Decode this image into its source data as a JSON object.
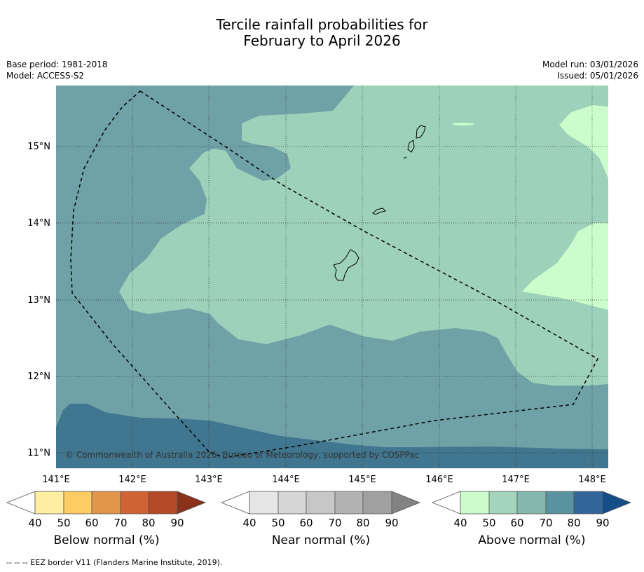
{
  "title": {
    "line1": "Tercile rainfall probabilities for",
    "line2": "February to April 2026"
  },
  "meta_left": {
    "base_period": "Base period: 1981-2018",
    "model": "Model: ACCESS-S2"
  },
  "meta_right": {
    "model_run": "Model run: 03/01/2026",
    "issued": "Issued: 05/01/2026"
  },
  "map": {
    "lon_ticks": [
      "141°E",
      "142°E",
      "143°E",
      "144°E",
      "145°E",
      "146°E",
      "147°E",
      "148°E"
    ],
    "lat_ticks": [
      "15°N",
      "14°N",
      "13°N",
      "12°N",
      "11°N"
    ],
    "lon_range": [
      140.9,
      148.1
    ],
    "lat_range": [
      10.8,
      15.8
    ],
    "copyright": "© Commonwealth of Australia 2026, Bureau of Meteorology, supported by COSPPac",
    "colors": {
      "above_50_60": "#9dd1b9",
      "above_40_50": "#cbfccb",
      "above_60_70_tone": "#6fa2a6",
      "above_70_80_tone": "#40768f"
    }
  },
  "colorbars": [
    {
      "label": "Below normal (%)",
      "ticks": [
        "40",
        "50",
        "60",
        "70",
        "80",
        "90"
      ],
      "colors": [
        "#ffffff",
        "#fdeea1",
        "#fdcd64",
        "#e2964b",
        "#cf6334",
        "#b44a27",
        "#8a3219"
      ]
    },
    {
      "label": "Near normal (%)",
      "ticks": [
        "40",
        "50",
        "60",
        "70",
        "80",
        "90"
      ],
      "colors": [
        "#ffffff",
        "#e6e6e6",
        "#d6d6d6",
        "#c7c7c7",
        "#b3b3b3",
        "#a0a0a0",
        "#838383"
      ]
    },
    {
      "label": "Above normal (%)",
      "ticks": [
        "40",
        "50",
        "60",
        "70",
        "80",
        "90"
      ],
      "colors": [
        "#ffffff",
        "#ccfccc",
        "#a4d4bb",
        "#86b7ac",
        "#5a93a0",
        "#33669a",
        "#154e87"
      ]
    }
  ],
  "footnote": "--  --  -- EEZ border V11 (Flanders Marine Institute, 2019)."
}
